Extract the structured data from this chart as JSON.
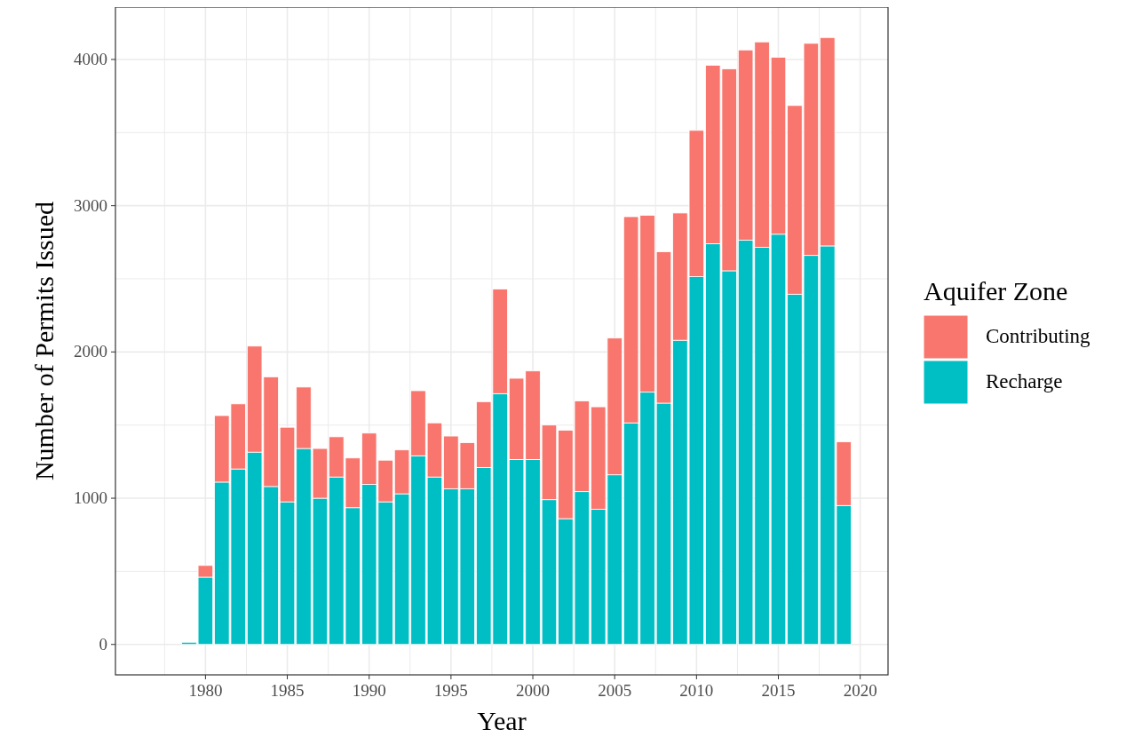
{
  "chart_data": {
    "type": "bar",
    "stacked": true,
    "xlabel": "Year",
    "ylabel": "Number of Permits Issued",
    "legend_title": "Aquifer Zone",
    "x": [
      1979,
      1980,
      1981,
      1982,
      1983,
      1984,
      1985,
      1986,
      1987,
      1988,
      1989,
      1990,
      1991,
      1992,
      1993,
      1994,
      1995,
      1996,
      1997,
      1998,
      1999,
      2000,
      2001,
      2002,
      2003,
      2004,
      2005,
      2006,
      2007,
      2008,
      2009,
      2010,
      2011,
      2012,
      2013,
      2014,
      2015,
      2016,
      2017,
      2018,
      2019
    ],
    "series": [
      {
        "name": "Recharge",
        "color": "#00bfc4",
        "values": [
          15,
          460,
          1110,
          1200,
          1315,
          1080,
          975,
          1340,
          1000,
          1145,
          935,
          1095,
          975,
          1030,
          1290,
          1145,
          1065,
          1065,
          1210,
          1715,
          1265,
          1265,
          990,
          860,
          1045,
          925,
          1160,
          1515,
          1725,
          1650,
          2080,
          2515,
          2740,
          2555,
          2765,
          2715,
          2805,
          2395,
          2660,
          2725,
          950
        ]
      },
      {
        "name": "Contributing",
        "color": "#f8766d",
        "values": [
          0,
          80,
          455,
          445,
          725,
          750,
          510,
          420,
          340,
          275,
          340,
          350,
          285,
          300,
          445,
          370,
          360,
          315,
          450,
          715,
          555,
          605,
          510,
          605,
          620,
          700,
          935,
          1410,
          1210,
          1035,
          870,
          1000,
          1220,
          1380,
          1300,
          1405,
          1210,
          1290,
          1450,
          1425,
          435
        ]
      }
    ],
    "xlim": [
      1974.5,
      2021.7
    ],
    "xticks": [
      1980,
      1985,
      1990,
      1995,
      2000,
      2005,
      2010,
      2015,
      2020
    ],
    "ylim": [
      -208,
      4358
    ],
    "yticks": [
      0,
      1000,
      2000,
      3000,
      4000
    ],
    "grid": true,
    "legend": "right"
  }
}
